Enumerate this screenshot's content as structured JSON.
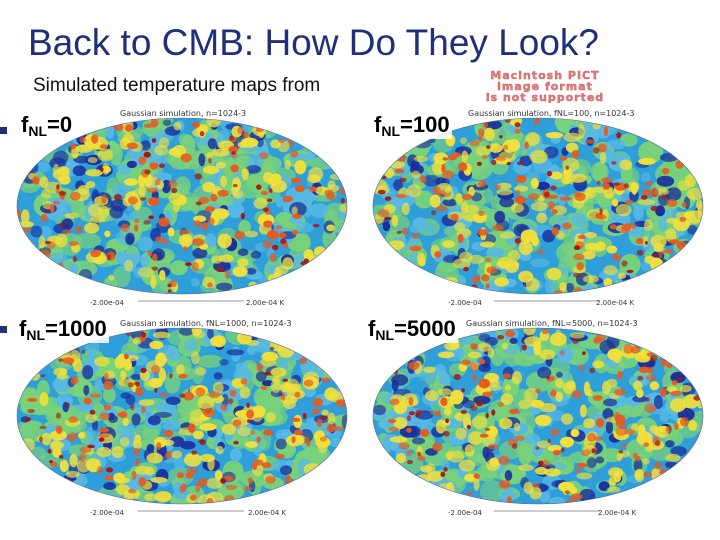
{
  "slide": {
    "title": "Back to CMB: How Do They Look?",
    "subtitle": "Simulated temperature maps from",
    "pict_placeholder_lines": [
      "Macintosh PICT",
      "image format",
      "is not supported"
    ]
  },
  "panels": [
    {
      "caption": "Gaussian simulation, n=1024-3",
      "label_main": "f",
      "label_sub": "NL",
      "label_value": "=0",
      "scale_min": "-2.00e-04",
      "scale_max": "2.00e-04 K"
    },
    {
      "caption": "Gaussian simulation, fNL=100, n=1024-3",
      "label_main": "f",
      "label_sub": "NL",
      "label_value": "=100",
      "scale_min": "-2.00e-04",
      "scale_max": "2.00e-04 K"
    },
    {
      "caption": "Gaussian simulation, fNL=1000, n=1024-3",
      "label_main": "f",
      "label_sub": "NL",
      "label_value": "=1000",
      "scale_min": "-2.00e-04",
      "scale_max": "2.00e-04 K"
    },
    {
      "caption": "Gaussian simulation, fNL=5000, n=1024-3",
      "label_main": "f",
      "label_sub": "NL",
      "label_value": "=5000",
      "scale_min": "-2.00e-04",
      "scale_max": "2.00e-04 K"
    }
  ],
  "colors": {
    "title": "#1f2f7a",
    "map_background": "#2e9fd8",
    "map_cold": "#1a2f9c",
    "map_cool": "#57b8e6",
    "map_neutral": "#79d27a",
    "map_warm": "#f2e03a",
    "map_hot": "#e8591e",
    "map_hottest": "#a8140f",
    "placeholder_text": "#e37a7a"
  }
}
